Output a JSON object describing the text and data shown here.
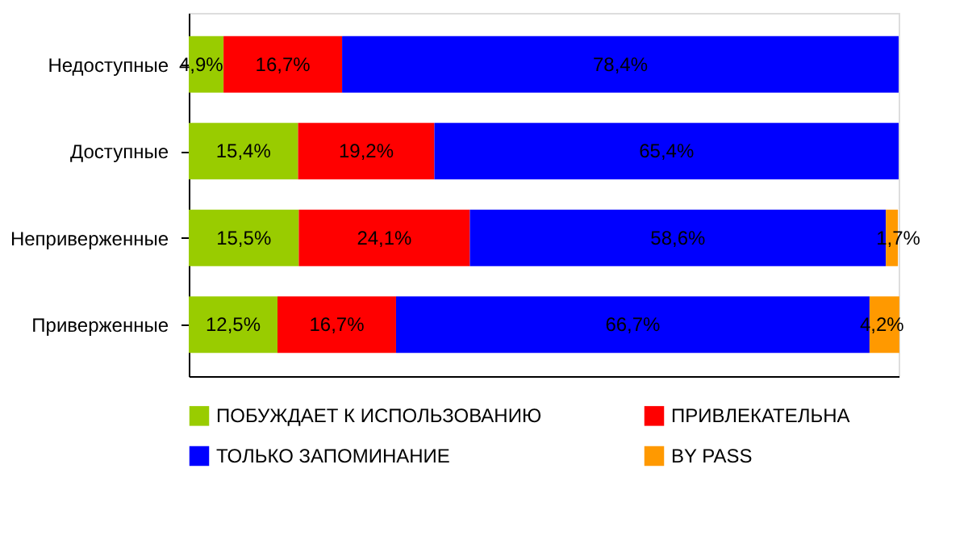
{
  "chart_data": {
    "type": "bar",
    "orientation": "horizontal",
    "stacked": true,
    "categories": [
      "Недоступные",
      "Доступные",
      "Неприверженные",
      "Приверженные"
    ],
    "series": [
      {
        "name": "ПОБУЖДАЕТ К  ИСПОЛЬЗОВАНИЮ",
        "color": "#99cc00",
        "values": [
          4.9,
          15.4,
          15.5,
          12.5
        ],
        "value_labels": [
          "4,9%",
          "15,4%",
          "15,5%",
          "12,5%"
        ]
      },
      {
        "name": "ПРИВЛЕКАТЕЛЬНА",
        "color": "#ff0000",
        "values": [
          16.7,
          19.2,
          24.1,
          16.7
        ],
        "value_labels": [
          "16,7%",
          "19,2%",
          "24,1%",
          "16,7%"
        ]
      },
      {
        "name": "ТОЛЬКО ЗАПОМИНАНИЕ",
        "color": "#0000ff",
        "values": [
          78.4,
          65.4,
          58.6,
          66.7
        ],
        "value_labels": [
          "78,4%",
          "65,4%",
          "58,6%",
          "66,7%"
        ]
      },
      {
        "name": "BY PASS",
        "color": "#ff9900",
        "values": [
          null,
          null,
          1.7,
          4.2
        ],
        "value_labels": [
          null,
          null,
          "1,7%",
          "4,2%"
        ]
      }
    ],
    "xlim": [
      0,
      100
    ],
    "tick_labels": "y",
    "grid": false,
    "legend": "bottom"
  }
}
